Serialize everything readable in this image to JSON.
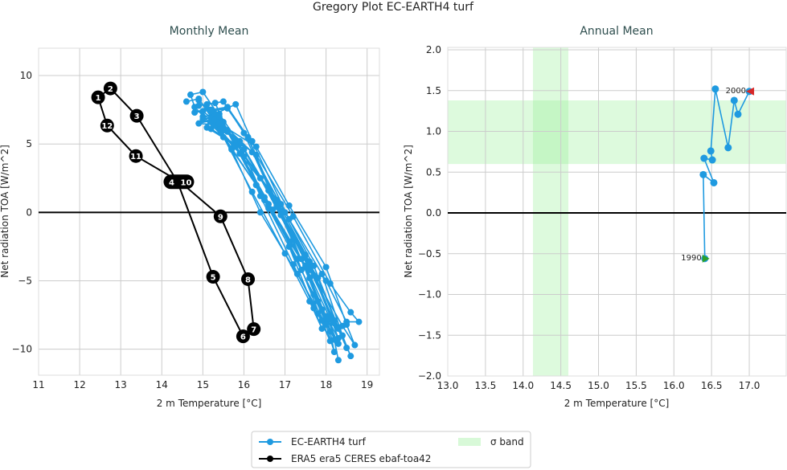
{
  "title": "Gregory Plot EC-EARTH4 turf",
  "colors": {
    "model": "#1f9ae0",
    "obs": "#000000",
    "band": "#90ee90",
    "start": "#2ca02c",
    "end": "#d62728",
    "grid": "#cccccc"
  },
  "legend": {
    "placement": "bottom-center",
    "items": [
      {
        "label": "EC-EARTH4 turf",
        "kind": "line-marker",
        "color": "#1f9ae0"
      },
      {
        "label": "σ band",
        "kind": "patch",
        "color": "#90ee90"
      },
      {
        "label": "ERA5 era5 CERES ebaf-toa42",
        "kind": "line-marker",
        "color": "#000000"
      }
    ]
  },
  "chart_data": [
    {
      "type": "line",
      "title": "Monthly Mean",
      "xlabel": "2 m Temperature [°C]",
      "ylabel": "Net radiation TOA [W/m^2]",
      "xlim": [
        11,
        19.3
      ],
      "ylim": [
        -11.9,
        12
      ],
      "xticks": [
        "11",
        "12",
        "13",
        "14",
        "15",
        "16",
        "17",
        "18",
        "19"
      ],
      "yticks": [
        "−10",
        "−5",
        "0",
        "5",
        "10"
      ],
      "ytick_values": [
        -10,
        -5,
        0,
        5,
        10
      ],
      "grid": true,
      "zero_line": true,
      "series": [
        {
          "name": "EC-EARTH4 turf",
          "x": [
            14.6,
            14.9,
            15.4,
            16.2,
            17.0,
            17.6,
            17.9,
            17.7,
            17.1,
            16.3,
            15.5,
            14.8,
            14.7,
            15.0,
            15.5,
            16.3,
            17.1,
            17.7,
            18.0,
            17.8,
            17.2,
            16.4,
            15.6,
            14.9,
            14.9,
            15.3,
            15.6,
            16.5,
            17.4,
            17.9,
            18.3,
            18.1,
            17.5,
            16.6,
            15.9,
            15.0,
            14.8,
            15.1,
            15.8,
            16.4,
            17.2,
            17.8,
            18.1,
            17.9,
            17.3,
            16.5,
            15.7,
            15.2,
            15.0,
            15.4,
            15.9,
            16.6,
            17.5,
            18.0,
            18.3,
            18.2,
            17.6,
            16.8,
            15.9,
            15.2,
            15.1,
            15.5,
            16.0,
            16.8,
            17.6,
            18.2,
            18.5,
            18.3,
            17.7,
            16.9,
            16.0,
            15.3,
            14.9,
            15.3,
            15.7,
            16.4,
            17.3,
            18.0,
            18.2,
            18.1,
            17.4,
            16.7,
            15.8,
            15.1,
            15.2,
            15.6,
            16.1,
            16.9,
            17.8,
            18.3,
            18.6,
            18.4,
            17.9,
            17.0,
            16.2,
            15.4,
            15.3,
            15.8,
            16.2,
            17.1,
            18.0,
            18.5,
            18.8,
            18.6,
            18.1,
            17.2,
            16.3,
            15.5,
            15.0,
            15.4,
            15.8,
            16.6,
            17.5,
            18.1,
            18.3,
            18.2,
            17.6,
            16.8,
            16.0,
            15.2,
            15.2,
            15.6,
            16.1,
            16.9,
            17.7,
            18.4,
            18.7,
            18.5,
            18.0,
            17.1,
            16.3,
            15.4
          ],
          "y": [
            8.1,
            8.3,
            6.1,
            1.5,
            -3.0,
            -6.5,
            -8.5,
            -7.0,
            -2.5,
            2.0,
            5.5,
            7.7,
            8.6,
            8.8,
            6.6,
            2.0,
            -2.5,
            -6.0,
            -8.0,
            -6.5,
            -2.0,
            2.5,
            6.0,
            8.2,
            7.8,
            8.0,
            5.9,
            0.9,
            -3.4,
            -7.1,
            -9.2,
            -7.6,
            -3.1,
            1.6,
            5.2,
            7.4,
            7.3,
            7.6,
            5.3,
            1.2,
            -3.8,
            -7.4,
            -9.4,
            -7.9,
            -3.4,
            1.1,
            4.7,
            6.9,
            7.0,
            7.2,
            5.0,
            0.3,
            -4.0,
            -7.6,
            -9.6,
            -8.1,
            -3.6,
            0.9,
            4.3,
            6.6,
            7.9,
            8.1,
            5.8,
            0.5,
            -4.2,
            -7.9,
            -9.9,
            -8.4,
            -3.9,
            0.6,
            4.1,
            6.4,
            6.5,
            6.8,
            4.6,
            0.0,
            -4.5,
            -8.2,
            -10.2,
            -8.7,
            -4.2,
            0.2,
            4.9,
            6.2,
            7.5,
            7.7,
            5.5,
            -0.2,
            -4.8,
            -8.5,
            -10.5,
            -9.0,
            -4.5,
            0.0,
            4.4,
            6.7,
            7.2,
            7.9,
            5.2,
            -0.5,
            -5.0,
            -8.0,
            -8.0,
            -7.3,
            -5.2,
            -0.3,
            4.2,
            6.0,
            6.8,
            7.0,
            4.8,
            0.6,
            -3.9,
            -7.8,
            -10.8,
            -9.3,
            -4.8,
            0.4,
            4.6,
            6.1,
            7.4,
            7.6,
            5.4,
            0.1,
            -4.6,
            -8.3,
            -9.7,
            -8.2,
            -4.0,
            0.5,
            4.8,
            6.5
          ]
        },
        {
          "name": "ERA5 era5 CERES ebaf-toa42",
          "labels": [
            "1",
            "2",
            "3",
            "4",
            "5",
            "6",
            "7",
            "8",
            "9",
            "10",
            "11",
            "12"
          ],
          "x": [
            12.45,
            12.75,
            13.39,
            14.38,
            15.25,
            15.98,
            16.24,
            16.1,
            15.43,
            14.45,
            13.37,
            12.67
          ],
          "y": [
            8.41,
            9.06,
            7.06,
            2.25,
            -4.71,
            -9.06,
            -8.53,
            -4.88,
            -0.29,
            2.22,
            4.12,
            6.35
          ],
          "closed": true
        }
      ]
    },
    {
      "type": "line",
      "title": "Annual Mean",
      "xlabel": "2 m Temperature [°C]",
      "ylabel": "Net radiation TOA [W/m^2]",
      "xlim": [
        13.0,
        17.49
      ],
      "ylim": [
        -2.0,
        2.03
      ],
      "xticks": [
        "13.0",
        "13.5",
        "14.0",
        "14.5",
        "15.0",
        "15.5",
        "16.0",
        "16.5",
        "17.0"
      ],
      "yticks": [
        "−2.0",
        "−1.5",
        "−1.0",
        "−0.5",
        "0.0",
        "0.5",
        "1.0",
        "1.5",
        "2.0"
      ],
      "ytick_values": [
        -2.0,
        -1.5,
        -1.0,
        -0.5,
        0.0,
        0.5,
        1.0,
        1.5,
        2.0
      ],
      "grid": true,
      "zero_line": true,
      "sigma_band": {
        "x": [
          14.13,
          14.6
        ],
        "y": [
          0.6,
          1.38
        ]
      },
      "series": [
        {
          "name": "EC-EARTH4 turf",
          "x": [
            16.41,
            16.39,
            16.53,
            16.4,
            16.51,
            16.49,
            16.55,
            16.72,
            16.8,
            16.85,
            17.0
          ],
          "y": [
            -0.56,
            0.47,
            0.37,
            0.67,
            0.65,
            0.76,
            1.52,
            0.8,
            1.38,
            1.21,
            1.49
          ]
        }
      ],
      "annotations": [
        {
          "text": "1990",
          "x": 16.41,
          "y": -0.56,
          "marker": "start"
        },
        {
          "text": "2000",
          "x": 17.0,
          "y": 1.49,
          "marker": "end"
        }
      ]
    }
  ]
}
